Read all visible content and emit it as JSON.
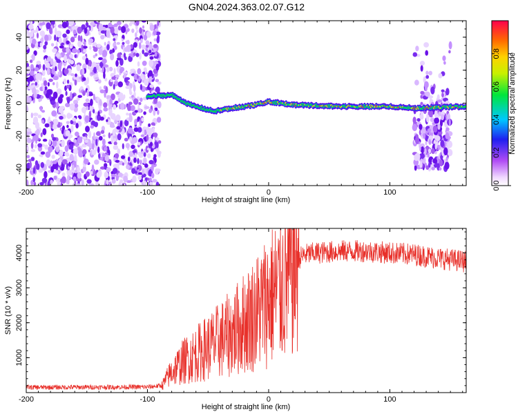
{
  "title": "GN04.2024.363.02.07.G12",
  "chart_data": [
    {
      "type": "heatmap",
      "xlabel": "Height of straight line (km)",
      "ylabel": "Frequency (Hz)",
      "xlim": [
        -200,
        163
      ],
      "ylim": [
        -50,
        50
      ],
      "xticks": [
        -200,
        -100,
        0,
        100
      ],
      "xtick_labels": [
        "-200",
        "-100",
        "0",
        "100"
      ],
      "yticks": [
        -40,
        -20,
        0,
        20,
        40
      ],
      "ytick_labels": [
        "-40",
        "-20",
        "0",
        "20",
        "40"
      ],
      "colorbar": {
        "label": "Normalized spectral amplitude",
        "range": [
          0,
          1
        ],
        "ticks": [
          0.0,
          0.2,
          0.4,
          0.6,
          0.8
        ],
        "tick_labels": [
          "0.0",
          "0.2",
          "0.4",
          "0.6",
          "0.8"
        ],
        "colormap": "rainbow"
      },
      "features": {
        "noise_region_x": [
          -200,
          -90
        ],
        "signal_line_x": [
          -100,
          163
        ],
        "signal_frequency_hz": [
          [
            -100,
            4
          ],
          [
            -80,
            5
          ],
          [
            -65,
            -1
          ],
          [
            -45,
            -5
          ],
          [
            -30,
            -3
          ],
          [
            -10,
            -1
          ],
          [
            0,
            1
          ],
          [
            20,
            -1
          ],
          [
            60,
            -2
          ],
          [
            100,
            -2
          ],
          [
            120,
            -3
          ],
          [
            163,
            -2
          ]
        ],
        "noise_region_right_x": [
          120,
          150
        ]
      },
      "grid": false
    },
    {
      "type": "line",
      "xlabel": "Height of straight line (km)",
      "ylabel": "SNR (10 * v/v)",
      "xlim": [
        -200,
        163
      ],
      "ylim": [
        0,
        4700
      ],
      "xticks": [
        -200,
        -100,
        0,
        100
      ],
      "xtick_labels": [
        "-200",
        "-100",
        "0",
        "100"
      ],
      "yticks": [
        1000,
        2000,
        3000,
        4000
      ],
      "ytick_labels": [
        "1000",
        "2000",
        "3000",
        "4000"
      ],
      "color": "#e8302a",
      "series": [
        {
          "x": [
            -200,
            -100,
            -88,
            -80,
            -70,
            -60,
            -50,
            -40,
            -30,
            -20,
            -10,
            0,
            10,
            15,
            20,
            25,
            30,
            40,
            60,
            80,
            100,
            120,
            140,
            163
          ],
          "y": [
            150,
            160,
            200,
            600,
            900,
            1100,
            1300,
            1500,
            1700,
            2000,
            2300,
            2700,
            3000,
            3200,
            3600,
            3850,
            3950,
            4000,
            4050,
            4050,
            4000,
            3950,
            3850,
            3750
          ]
        }
      ],
      "grid": false
    }
  ]
}
